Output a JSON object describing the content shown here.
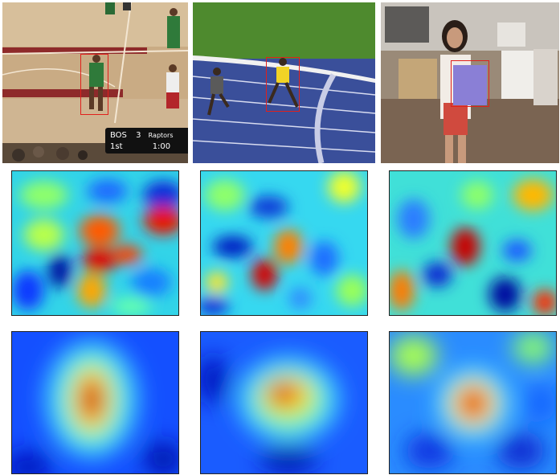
{
  "photos": [
    {
      "scene": "basketball-court",
      "scoreboard": {
        "team_a": "BOS",
        "score_a": "3",
        "period": "1st",
        "team_b": "Raptors",
        "clock": "1:00"
      }
    },
    {
      "scene": "running-track"
    },
    {
      "scene": "person-holding-card"
    }
  ],
  "heatmaps": {
    "colormap": [
      "#00007f",
      "#0000ff",
      "#007fff",
      "#00ffff",
      "#7fff7f",
      "#ffff00",
      "#ff7f00",
      "#ff0000",
      "#7f0000"
    ],
    "rows": [
      {
        "description": "noisy response maps"
      },
      {
        "description": "focused response maps"
      }
    ]
  }
}
